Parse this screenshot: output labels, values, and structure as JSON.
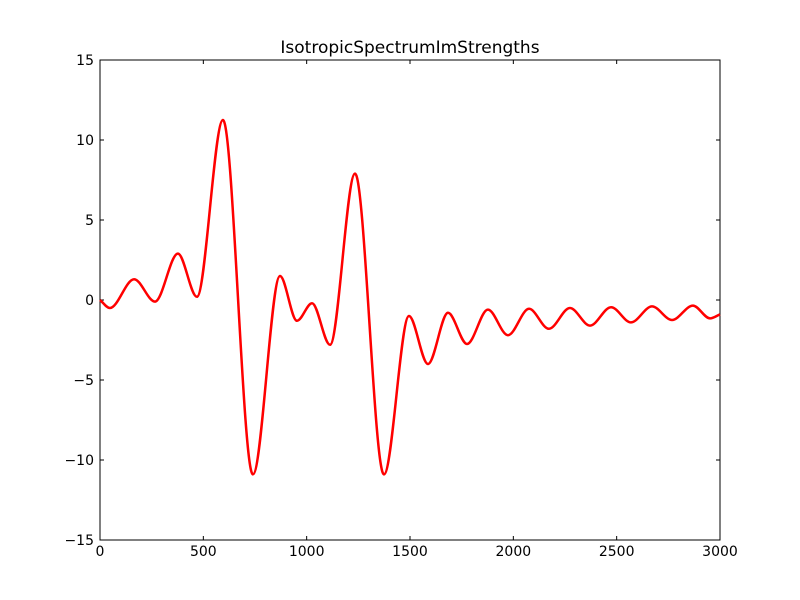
{
  "chart_data": {
    "type": "line",
    "title": "IsotropicSpectrumImStrengths",
    "x": [
      0,
      48,
      165,
      266,
      377,
      469,
      595,
      740,
      871,
      953,
      1026,
      1113,
      1234,
      1374,
      1495,
      1587,
      1684,
      1776,
      1877,
      1974,
      2076,
      2172,
      2274,
      2371,
      2473,
      2569,
      2671,
      2768,
      2869,
      2952,
      3000
    ],
    "series": [
      {
        "name": "IsotropicSpectrumImStrengths",
        "color": "#ff0000",
        "values": [
          0,
          -0.5,
          1.3,
          -0.1,
          2.9,
          0.2,
          11.25,
          -10.9,
          1.5,
          -1.3,
          -0.2,
          -2.8,
          7.9,
          -10.9,
          -1.0,
          -4.0,
          -0.8,
          -2.75,
          -0.6,
          -2.2,
          -0.55,
          -1.8,
          -0.5,
          -1.6,
          -0.45,
          -1.4,
          -0.4,
          -1.25,
          -0.35,
          -1.15,
          -0.9
        ]
      }
    ],
    "xlim": [
      0,
      3000
    ],
    "ylim": [
      -15,
      15
    ],
    "xticks": [
      0,
      500,
      1000,
      1500,
      2000,
      2500,
      3000
    ],
    "yticks": [
      {
        "value": -15,
        "label": "−15"
      },
      {
        "value": -10,
        "label": "−10"
      },
      {
        "value": -5,
        "label": "−5"
      },
      0,
      5,
      10,
      15
    ]
  }
}
